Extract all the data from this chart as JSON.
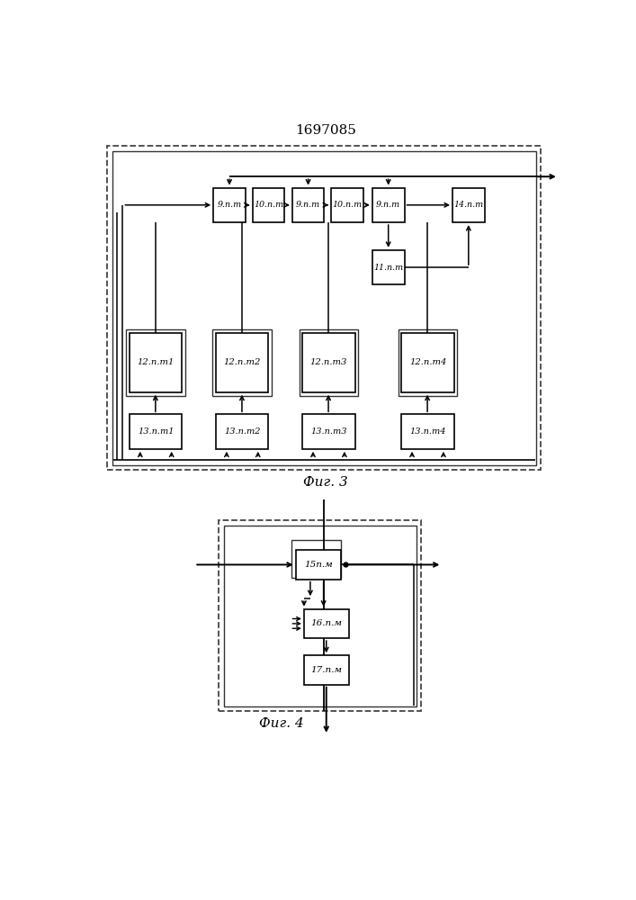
{
  "title": "1697085",
  "fig3_label": "Фиг. 3",
  "fig4_label": "Фиг. 4",
  "bg_color": "#ffffff",
  "top_boxes": [
    "9.п.m",
    "10.п.m",
    "9.п.m",
    "10.п.m",
    "9.п.m",
    "14.п.m"
  ],
  "box11": "11.п.m",
  "col12": [
    "12.п.m1",
    "12.п.m2",
    "12.п.m3",
    "12.п.m4"
  ],
  "col13": [
    "13.п.m1",
    "13.п.m2",
    "13.п.m3",
    "13.п.m4"
  ],
  "fig4_boxes": [
    "15п.м",
    "16.п.м",
    "17.п.м"
  ]
}
